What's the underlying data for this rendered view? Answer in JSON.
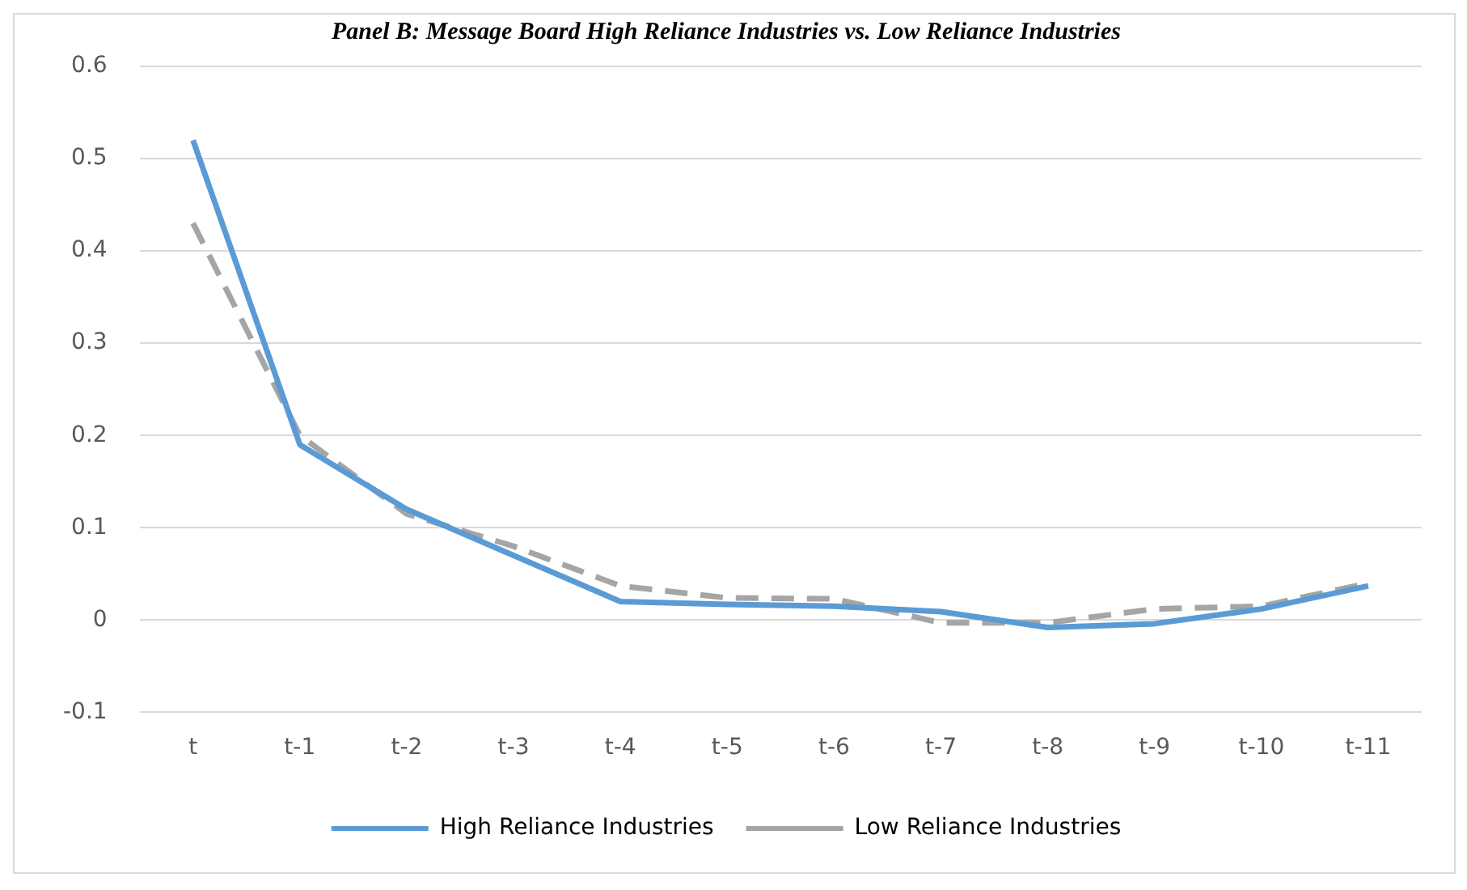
{
  "chart_data": {
    "type": "line",
    "title": "Panel B: Message Board High Reliance Industries vs. Low Reliance Industries",
    "categories": [
      "t",
      "t-1",
      "t-2",
      "t-3",
      "t-4",
      "t-5",
      "t-6",
      "t-7",
      "t-8",
      "t-9",
      "t-10",
      "t-11"
    ],
    "series": [
      {
        "name": "High Reliance Industries",
        "color": "#5b9bd5",
        "line_style": "solid",
        "values": [
          0.52,
          0.19,
          0.12,
          0.07,
          0.02,
          0.017,
          0.015,
          0.009,
          -0.008,
          -0.004,
          0.012,
          0.037
        ]
      },
      {
        "name": "Low Reliance Industries",
        "color": "#a5a5a5",
        "line_style": "dashed",
        "values": [
          0.43,
          0.2,
          0.115,
          0.08,
          0.037,
          0.024,
          0.023,
          -0.003,
          -0.003,
          0.012,
          0.015,
          0.04
        ]
      }
    ],
    "ylim": [
      -0.1,
      0.6
    ],
    "yticks": [
      -0.1,
      0,
      0.1,
      0.2,
      0.3,
      0.4,
      0.5,
      0.6
    ],
    "grid": "y",
    "legend": "bottom",
    "marker": "none"
  }
}
